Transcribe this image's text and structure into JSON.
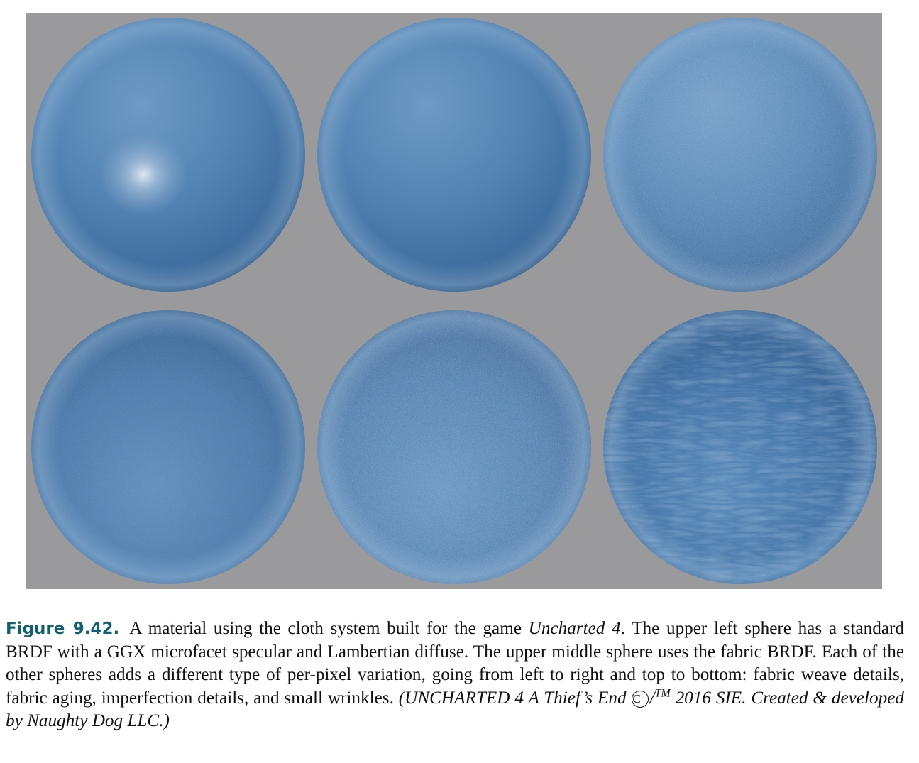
{
  "figure": {
    "background_color": "#9a9a9c",
    "sphere_color": "#4a7aa8",
    "spheres": [
      {
        "row": 1,
        "col": 1,
        "variant": "standard-ggx-lambertian",
        "highlight": true,
        "texture": "smooth"
      },
      {
        "row": 1,
        "col": 2,
        "variant": "fabric-brdf",
        "highlight": false,
        "texture": "smooth"
      },
      {
        "row": 1,
        "col": 3,
        "variant": "fabric-weave-details",
        "highlight": false,
        "texture": "fine-weave"
      },
      {
        "row": 2,
        "col": 1,
        "variant": "fabric-aging",
        "highlight": false,
        "texture": "aged"
      },
      {
        "row": 2,
        "col": 2,
        "variant": "imperfection-details",
        "highlight": false,
        "texture": "speckled"
      },
      {
        "row": 2,
        "col": 3,
        "variant": "small-wrinkles",
        "highlight": false,
        "texture": "wrinkled"
      }
    ]
  },
  "caption": {
    "label": "Figure 9.42.",
    "text_1": "A material using the cloth system built for the game ",
    "game_title": "Uncharted 4",
    "text_2": ". The upper left sphere has a standard BRDF with a GGX microfacet specular and Lambertian diffuse. The upper middle sphere uses the fabric BRDF. Each of the other spheres adds a different type of per-pixel variation, going from left to right and top to bottom: fabric weave details, fabric aging, imperfection details, and small wrinkles. ",
    "credit_1": "(UNCHARTED 4 A Thief’s End ",
    "copyright_symbol": "C",
    "slash": "/",
    "trademark": "TM",
    "credit_2": " 2016 SIE. Created & developed by Naughty Dog LLC.)"
  }
}
